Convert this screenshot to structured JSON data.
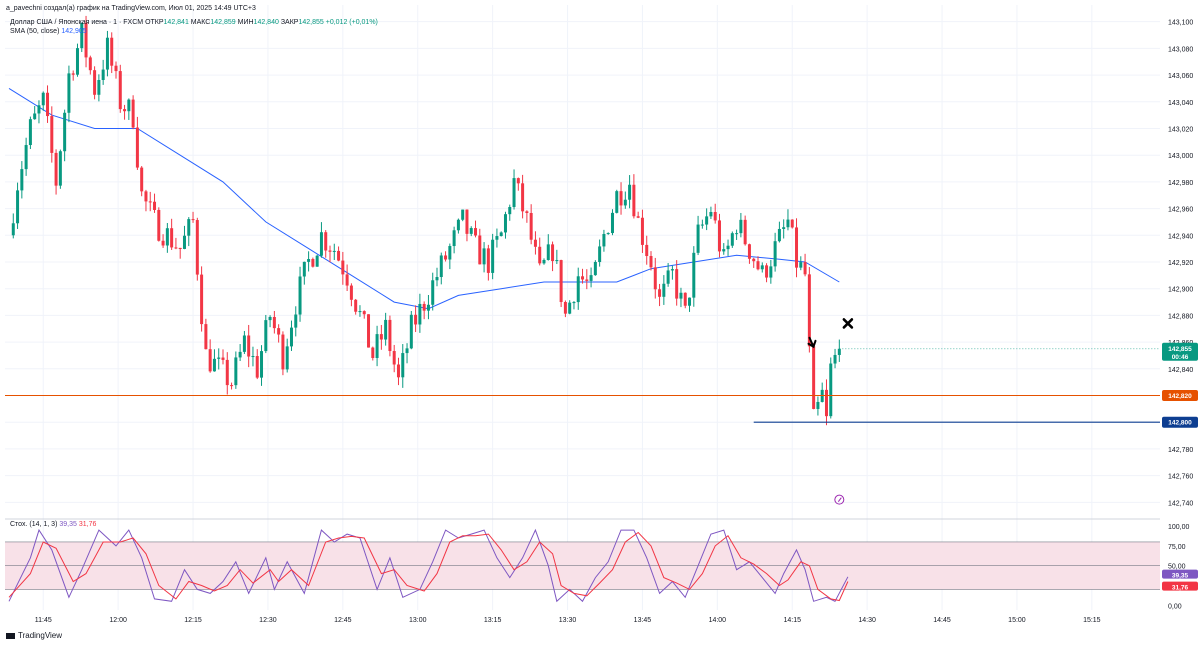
{
  "header": {
    "creator_line": "a_pavechni создал(a) график на TradingView.com, Июл 01, 2025 14:49 UTC+3"
  },
  "legend": {
    "symbol": "Доллар США / Японская иена · 1 · FXCM",
    "open_label": "ОТКР",
    "open_value": "142,841",
    "high_label": "МАКС",
    "high_value": "142,859",
    "low_label": "МИН",
    "low_value": "142,840",
    "close_label": "ЗАКР",
    "close_value": "142,855",
    "change": "+0,012 (+0,01%)",
    "sma_label": "SMA (50, close)",
    "sma_value": "142,905",
    "stoch_label": "Стох. (14, 1, 3)",
    "stoch_k": "39,35",
    "stoch_d": "31,76"
  },
  "price_badges": {
    "current": "142,855",
    "countdown": "00:46",
    "orange_level": "142,820",
    "blue_level": "142,800"
  },
  "stoch_badges": {
    "k": "39,35",
    "d": "31,76"
  },
  "footer": {
    "brand": "TradingView"
  },
  "colors": {
    "up": "#089981",
    "down": "#f23645",
    "sma": "#2962ff",
    "orange_line": "#e65100",
    "blue_line": "#0d3e91",
    "stoch_k": "#7e57c2",
    "stoch_d": "#f23645",
    "stoch_band": "#f8e1e8"
  },
  "chart_data": [
    {
      "type": "candlestick",
      "timeframe": "1",
      "x_ticks": [
        "11:45",
        "12:00",
        "12:15",
        "12:30",
        "12:45",
        "13:00",
        "13:15",
        "13:30",
        "13:45",
        "14:00",
        "14:15",
        "14:30",
        "14:45",
        "15:00",
        "15:15"
      ],
      "y_ticks": [
        "142,740",
        "142,760",
        "142,780",
        "142,800",
        "142,820",
        "142,840",
        "142,860",
        "142,880",
        "142,900",
        "142,920",
        "142,940",
        "142,960",
        "142,980",
        "143,000",
        "143,020",
        "143,040",
        "143,060",
        "143,080",
        "143,100"
      ],
      "ylim": [
        142.732,
        143.105
      ],
      "horizontal_lines": [
        {
          "price": 142.82,
          "color": "orange"
        },
        {
          "price": 142.8,
          "color": "blue"
        }
      ],
      "close_anchors": [
        [
          0,
          142.94
        ],
        [
          2,
          142.98
        ],
        [
          5,
          143.02
        ],
        [
          8,
          143.04
        ],
        [
          11,
          142.98
        ],
        [
          14,
          143.06
        ],
        [
          17,
          143.09
        ],
        [
          20,
          143.05
        ],
        [
          23,
          143.08
        ],
        [
          26,
          143.04
        ],
        [
          29,
          143.03
        ],
        [
          31,
          142.97
        ],
        [
          34,
          142.95
        ],
        [
          37,
          142.94
        ],
        [
          40,
          142.93
        ],
        [
          43,
          142.95
        ],
        [
          46,
          142.85
        ],
        [
          49,
          142.84
        ],
        [
          52,
          142.83
        ],
        [
          55,
          142.86
        ],
        [
          58,
          142.84
        ],
        [
          61,
          142.88
        ],
        [
          64,
          142.85
        ],
        [
          67,
          142.89
        ],
        [
          70,
          142.92
        ],
        [
          73,
          142.94
        ],
        [
          76,
          142.93
        ],
        [
          79,
          142.91
        ],
        [
          82,
          142.88
        ],
        [
          85,
          142.85
        ],
        [
          88,
          142.87
        ],
        [
          91,
          142.83
        ],
        [
          94,
          142.87
        ],
        [
          97,
          142.89
        ],
        [
          100,
          142.91
        ],
        [
          103,
          142.93
        ],
        [
          106,
          142.95
        ],
        [
          109,
          142.93
        ],
        [
          112,
          142.92
        ],
        [
          115,
          142.94
        ],
        [
          118,
          142.98
        ],
        [
          121,
          142.95
        ],
        [
          124,
          142.91
        ],
        [
          127,
          142.93
        ],
        [
          130,
          142.88
        ],
        [
          133,
          142.91
        ],
        [
          136,
          142.9
        ],
        [
          139,
          142.94
        ],
        [
          142,
          142.97
        ],
        [
          145,
          142.98
        ],
        [
          147,
          142.95
        ],
        [
          150,
          142.92
        ],
        [
          152,
          142.89
        ],
        [
          155,
          142.91
        ],
        [
          158,
          142.88
        ],
        [
          161,
          142.94
        ],
        [
          164,
          142.96
        ],
        [
          167,
          142.92
        ],
        [
          170,
          142.95
        ],
        [
          173,
          142.93
        ],
        [
          176,
          142.91
        ],
        [
          179,
          142.93
        ],
        [
          182,
          142.95
        ],
        [
          184,
          142.92
        ],
        [
          186,
          142.91
        ],
        [
          187,
          142.85
        ],
        [
          188,
          142.8
        ],
        [
          190,
          142.82
        ],
        [
          191,
          142.8
        ],
        [
          192,
          142.84
        ],
        [
          194,
          142.855
        ]
      ],
      "sma": {
        "name": "SMA (50, close)",
        "values": [
          [
            0,
            143.05
          ],
          [
            10,
            143.03
          ],
          [
            20,
            143.02
          ],
          [
            30,
            143.02
          ],
          [
            40,
            143.0
          ],
          [
            50,
            142.98
          ],
          [
            60,
            142.95
          ],
          [
            70,
            142.93
          ],
          [
            80,
            142.91
          ],
          [
            90,
            142.89
          ],
          [
            98,
            142.885
          ],
          [
            105,
            142.895
          ],
          [
            115,
            142.9
          ],
          [
            125,
            142.905
          ],
          [
            135,
            142.905
          ],
          [
            142,
            142.905
          ],
          [
            150,
            142.915
          ],
          [
            160,
            142.92
          ],
          [
            170,
            142.925
          ],
          [
            180,
            142.922
          ],
          [
            186,
            142.92
          ],
          [
            194,
            142.905
          ]
        ]
      }
    },
    {
      "type": "line",
      "name": "Стох. (14, 1, 3)",
      "y_ticks": [
        "0,00",
        "25,00",
        "50,00",
        "75,00",
        "100,00"
      ],
      "ylim": [
        -6,
        104
      ],
      "bands": [
        20,
        50,
        80
      ],
      "series": [
        {
          "name": "%K",
          "values": [
            [
              0,
              5
            ],
            [
              5,
              60
            ],
            [
              7,
              95
            ],
            [
              10,
              70
            ],
            [
              14,
              10
            ],
            [
              17,
              45
            ],
            [
              21,
              95
            ],
            [
              25,
              75
            ],
            [
              28,
              95
            ],
            [
              31,
              60
            ],
            [
              34,
              8
            ],
            [
              38,
              5
            ],
            [
              41,
              45
            ],
            [
              44,
              20
            ],
            [
              47,
              15
            ],
            [
              50,
              30
            ],
            [
              53,
              55
            ],
            [
              56,
              15
            ],
            [
              60,
              60
            ],
            [
              62,
              20
            ],
            [
              65,
              55
            ],
            [
              69,
              15
            ],
            [
              73,
              95
            ],
            [
              76,
              80
            ],
            [
              79,
              90
            ],
            [
              82,
              85
            ],
            [
              86,
              20
            ],
            [
              89,
              60
            ],
            [
              92,
              10
            ],
            [
              96,
              20
            ],
            [
              99,
              55
            ],
            [
              102,
              95
            ],
            [
              105,
              85
            ],
            [
              108,
              90
            ],
            [
              111,
              95
            ],
            [
              114,
              60
            ],
            [
              117,
              35
            ],
            [
              120,
              60
            ],
            [
              123,
              95
            ],
            [
              126,
              50
            ],
            [
              128,
              5
            ],
            [
              131,
              20
            ],
            [
              134,
              5
            ],
            [
              137,
              35
            ],
            [
              140,
              55
            ],
            [
              143,
              95
            ],
            [
              146,
              95
            ],
            [
              149,
              60
            ],
            [
              152,
              15
            ],
            [
              155,
              30
            ],
            [
              158,
              10
            ],
            [
              161,
              50
            ],
            [
              164,
              90
            ],
            [
              167,
              95
            ],
            [
              170,
              45
            ],
            [
              173,
              55
            ],
            [
              176,
              35
            ],
            [
              179,
              15
            ],
            [
              181,
              40
            ],
            [
              184,
              70
            ],
            [
              186,
              45
            ],
            [
              188,
              5
            ],
            [
              191,
              10
            ],
            [
              193,
              5
            ],
            [
              196,
              36
            ]
          ]
        },
        {
          "name": "%D",
          "values": [
            [
              0,
              10
            ],
            [
              5,
              40
            ],
            [
              8,
              80
            ],
            [
              11,
              72
            ],
            [
              15,
              30
            ],
            [
              18,
              40
            ],
            [
              22,
              80
            ],
            [
              26,
              80
            ],
            [
              29,
              85
            ],
            [
              32,
              65
            ],
            [
              35,
              25
            ],
            [
              39,
              8
            ],
            [
              42,
              30
            ],
            [
              45,
              25
            ],
            [
              48,
              18
            ],
            [
              51,
              25
            ],
            [
              54,
              45
            ],
            [
              57,
              28
            ],
            [
              61,
              45
            ],
            [
              63,
              30
            ],
            [
              66,
              45
            ],
            [
              70,
              25
            ],
            [
              74,
              80
            ],
            [
              77,
              85
            ],
            [
              80,
              87
            ],
            [
              83,
              85
            ],
            [
              87,
              40
            ],
            [
              90,
              45
            ],
            [
              93,
              25
            ],
            [
              97,
              18
            ],
            [
              100,
              40
            ],
            [
              103,
              80
            ],
            [
              106,
              88
            ],
            [
              109,
              88
            ],
            [
              112,
              90
            ],
            [
              115,
              70
            ],
            [
              118,
              45
            ],
            [
              121,
              55
            ],
            [
              124,
              80
            ],
            [
              127,
              65
            ],
            [
              129,
              25
            ],
            [
              132,
              15
            ],
            [
              135,
              12
            ],
            [
              138,
              28
            ],
            [
              141,
              45
            ],
            [
              144,
              80
            ],
            [
              147,
              92
            ],
            [
              150,
              75
            ],
            [
              153,
              35
            ],
            [
              156,
              28
            ],
            [
              159,
              20
            ],
            [
              162,
              40
            ],
            [
              165,
              75
            ],
            [
              168,
              88
            ],
            [
              171,
              60
            ],
            [
              174,
              52
            ],
            [
              177,
              40
            ],
            [
              180,
              25
            ],
            [
              182,
              32
            ],
            [
              185,
              55
            ],
            [
              187,
              50
            ],
            [
              189,
              20
            ],
            [
              192,
              8
            ],
            [
              194,
              6
            ],
            [
              196,
              30
            ]
          ]
        }
      ]
    }
  ]
}
